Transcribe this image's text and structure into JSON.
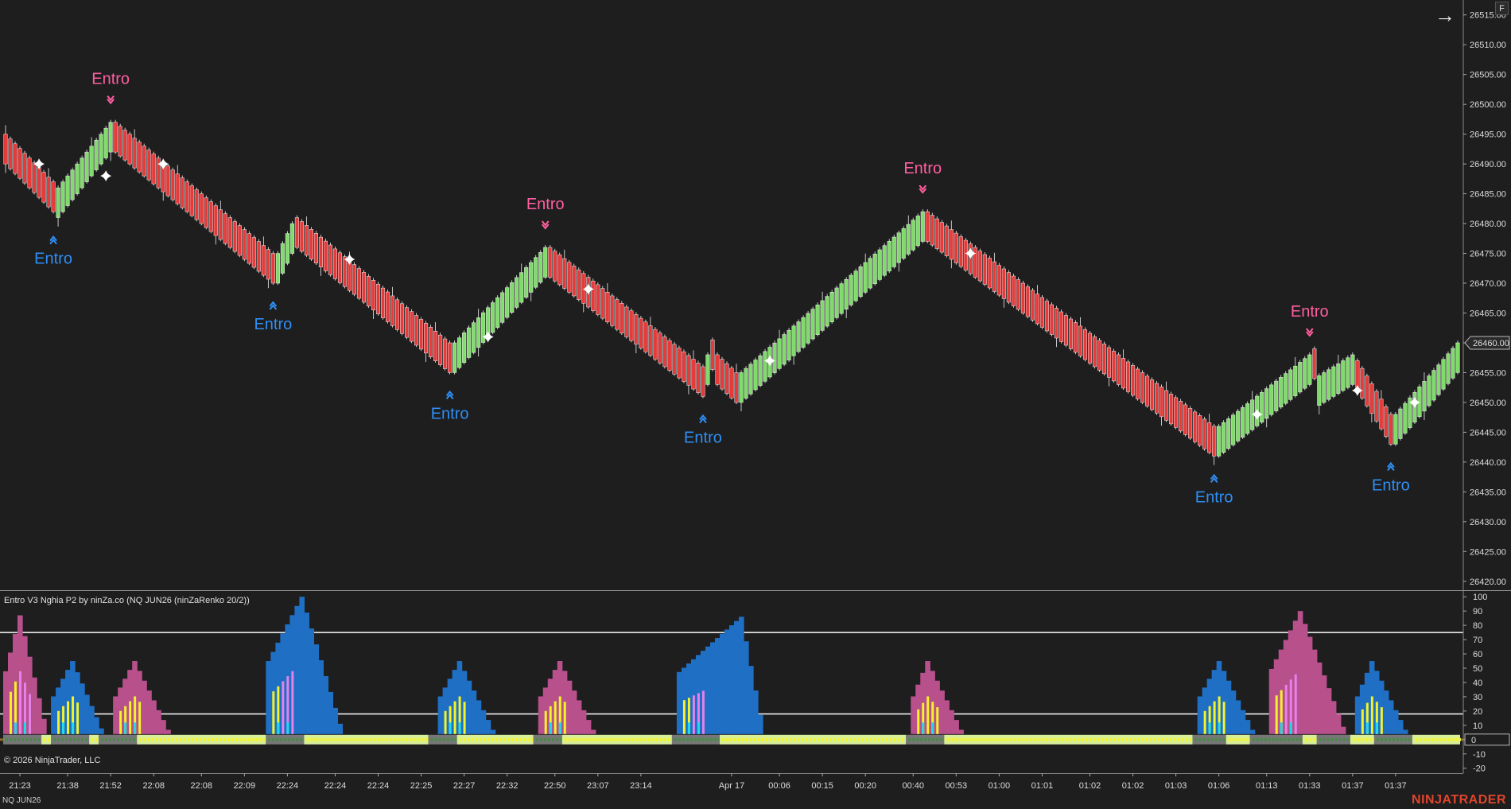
{
  "toolbar": {
    "top_button_label": "F"
  },
  "indicator": {
    "title": "Entro V3 Nghia P2 by ninZa.co (NQ JUN26 (ninZaRenko 20/2))"
  },
  "footer": {
    "copyright": "© 2026 NinjaTrader, LLC",
    "instrument": "NQ JUN26",
    "brand": "NINJATRADER"
  },
  "colors": {
    "background": "#1e1e1e",
    "bull": "#7fdc6a",
    "bear": "#e53b3b",
    "sell_label": "#ff5fa0",
    "buy_label": "#2f8ff5",
    "mom_blue": "#1f6fc4",
    "mom_pink": "#b8508c",
    "mom_yellow": "#f4f32a",
    "mom_cyan": "#22d8e8",
    "mom_violet": "#e681ea"
  },
  "chart_data": [
    {
      "type": "candlestick",
      "name": "price",
      "y_ticks": [
        "26515.00",
        "26510.00",
        "26505.00",
        "26500.00",
        "26495.00",
        "26490.00",
        "26485.00",
        "26480.00",
        "26475.00",
        "26470.00",
        "26465.00",
        "26460.00",
        "26455.00",
        "26450.00",
        "26445.00",
        "26440.00",
        "26435.00",
        "26430.00",
        "26425.00",
        "26420.00"
      ],
      "ylim": [
        26418.5,
        26517.5
      ],
      "current_price": "26460.00",
      "bar_count": 305,
      "price_path": [
        [
          0,
          26490
        ],
        [
          10,
          26482
        ],
        [
          11,
          26486
        ],
        [
          22,
          26497
        ],
        [
          23,
          26492
        ],
        [
          56,
          26470
        ],
        [
          57,
          26475
        ],
        [
          60,
          26480
        ],
        [
          61,
          26476
        ],
        [
          93,
          26455
        ],
        [
          94,
          26460
        ],
        [
          113,
          26476
        ],
        [
          114,
          26471
        ],
        [
          146,
          26451
        ],
        [
          147,
          26458
        ],
        [
          149,
          26453
        ],
        [
          153,
          26450
        ],
        [
          154,
          26455
        ],
        [
          192,
          26482
        ],
        [
          193,
          26477
        ],
        [
          253,
          26441
        ],
        [
          254,
          26446
        ],
        [
          273,
          26458
        ],
        [
          274,
          26454
        ],
        [
          282,
          26458
        ],
        [
          283,
          26452
        ],
        [
          290,
          26443
        ],
        [
          291,
          26448
        ],
        [
          304,
          26460
        ]
      ],
      "entro_signals": [
        {
          "label": "Entro",
          "side": "buy",
          "bar": 10,
          "price": 26481
        },
        {
          "label": "Entro",
          "side": "sell",
          "bar": 22,
          "price": 26497
        },
        {
          "label": "Entro",
          "side": "buy",
          "bar": 56,
          "price": 26470
        },
        {
          "label": "Entro",
          "side": "buy",
          "bar": 93,
          "price": 26455
        },
        {
          "label": "Entro",
          "side": "sell",
          "bar": 113,
          "price": 26476
        },
        {
          "label": "Entro",
          "side": "buy",
          "bar": 146,
          "price": 26451
        },
        {
          "label": "Entro",
          "side": "sell",
          "bar": 192,
          "price": 26482
        },
        {
          "label": "Entro",
          "side": "buy",
          "bar": 253,
          "price": 26441
        },
        {
          "label": "Entro",
          "side": "sell",
          "bar": 273,
          "price": 26458
        },
        {
          "label": "Entro",
          "side": "buy",
          "bar": 290,
          "price": 26443
        }
      ],
      "star_markers": [
        {
          "bar": 7,
          "price": 26490
        },
        {
          "bar": 21,
          "price": 26488
        },
        {
          "bar": 33,
          "price": 26490
        },
        {
          "bar": 72,
          "price": 26474
        },
        {
          "bar": 101,
          "price": 26461
        },
        {
          "bar": 122,
          "price": 26469
        },
        {
          "bar": 160,
          "price": 26457
        },
        {
          "bar": 202,
          "price": 26475
        },
        {
          "bar": 262,
          "price": 26448
        },
        {
          "bar": 283,
          "price": 26452
        },
        {
          "bar": 295,
          "price": 26450
        }
      ]
    },
    {
      "type": "bar",
      "name": "momentum",
      "y_ticks": [
        "100",
        "90",
        "80",
        "70",
        "60",
        "50",
        "40",
        "30",
        "20",
        "10",
        "0",
        "-10",
        "-20"
      ],
      "ylim": [
        -23.5,
        104
      ],
      "hlines": [
        75,
        18
      ],
      "zero_label": "0",
      "bursts": [
        {
          "start": 0,
          "peak": 3,
          "end": 8,
          "height": 87,
          "color": "pink"
        },
        {
          "start": 10,
          "peak": 14,
          "end": 20,
          "height": 55,
          "color": "blue"
        },
        {
          "start": 23,
          "peak": 27,
          "end": 34,
          "height": 55,
          "color": "pink"
        },
        {
          "start": 55,
          "peak": 62,
          "end": 70,
          "height": 100,
          "color": "blue"
        },
        {
          "start": 91,
          "peak": 95,
          "end": 102,
          "height": 55,
          "color": "blue"
        },
        {
          "start": 112,
          "peak": 116,
          "end": 123,
          "height": 55,
          "color": "pink"
        },
        {
          "start": 141,
          "peak": 154,
          "end": 158,
          "height": 86,
          "color": "blue"
        },
        {
          "start": 190,
          "peak": 193,
          "end": 200,
          "height": 55,
          "color": "pink"
        },
        {
          "start": 250,
          "peak": 254,
          "end": 261,
          "height": 55,
          "color": "blue"
        },
        {
          "start": 265,
          "peak": 271,
          "end": 280,
          "height": 90,
          "color": "pink"
        },
        {
          "start": 283,
          "peak": 286,
          "end": 293,
          "height": 55,
          "color": "blue"
        }
      ],
      "strip_segments": [
        [
          0,
          8,
          "gray"
        ],
        [
          8,
          10,
          "yellow"
        ],
        [
          10,
          18,
          "gray"
        ],
        [
          18,
          20,
          "yellow"
        ],
        [
          20,
          28,
          "gray"
        ],
        [
          28,
          55,
          "yellow"
        ],
        [
          55,
          63,
          "gray"
        ],
        [
          63,
          89,
          "yellow"
        ],
        [
          89,
          95,
          "gray"
        ],
        [
          95,
          111,
          "yellow"
        ],
        [
          111,
          117,
          "gray"
        ],
        [
          117,
          140,
          "yellow"
        ],
        [
          140,
          150,
          "gray"
        ],
        [
          150,
          189,
          "yellow"
        ],
        [
          189,
          197,
          "gray"
        ],
        [
          197,
          249,
          "yellow"
        ],
        [
          249,
          256,
          "gray"
        ],
        [
          256,
          261,
          "yellow"
        ],
        [
          261,
          272,
          "gray"
        ],
        [
          272,
          275,
          "yellow"
        ],
        [
          275,
          282,
          "gray"
        ],
        [
          282,
          287,
          "yellow"
        ],
        [
          287,
          295,
          "gray"
        ],
        [
          295,
          305,
          "yellow"
        ]
      ]
    }
  ],
  "time_axis": [
    {
      "bar": 3,
      "label": "21:23"
    },
    {
      "bar": 13,
      "label": "21:38"
    },
    {
      "bar": 22,
      "label": "21:52"
    },
    {
      "bar": 31,
      "label": "22:08"
    },
    {
      "bar": 41,
      "label": "22:08"
    },
    {
      "bar": 50,
      "label": "22:09"
    },
    {
      "bar": 59,
      "label": "22:24"
    },
    {
      "bar": 69,
      "label": "22:24"
    },
    {
      "bar": 78,
      "label": "22:24"
    },
    {
      "bar": 87,
      "label": "22:25"
    },
    {
      "bar": 96,
      "label": "22:27"
    },
    {
      "bar": 105,
      "label": "22:32"
    },
    {
      "bar": 115,
      "label": "22:50"
    },
    {
      "bar": 124,
      "label": "23:07"
    },
    {
      "bar": 133,
      "label": "23:14"
    },
    {
      "bar": 152,
      "label": "Apr 17"
    },
    {
      "bar": 162,
      "label": "00:06"
    },
    {
      "bar": 171,
      "label": "00:15"
    },
    {
      "bar": 180,
      "label": "00:20"
    },
    {
      "bar": 190,
      "label": "00:40"
    },
    {
      "bar": 199,
      "label": "00:53"
    },
    {
      "bar": 208,
      "label": "01:00"
    },
    {
      "bar": 217,
      "label": "01:01"
    },
    {
      "bar": 227,
      "label": "01:02"
    },
    {
      "bar": 236,
      "label": "01:02"
    },
    {
      "bar": 245,
      "label": "01:03"
    },
    {
      "bar": 254,
      "label": "01:06"
    },
    {
      "bar": 264,
      "label": "01:13"
    },
    {
      "bar": 273,
      "label": "01:33"
    },
    {
      "bar": 282,
      "label": "01:37"
    },
    {
      "bar": 291,
      "label": "01:37"
    }
  ]
}
